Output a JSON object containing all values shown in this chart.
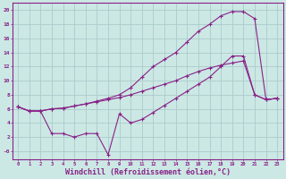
{
  "bg_color": "#cce8e4",
  "grid_color": "#aacccc",
  "line_color": "#882288",
  "xlabel": "Windchill (Refroidissement éolien,°C)",
  "xlabel_fontsize": 6.0,
  "xtick_labels": [
    "0",
    "1",
    "2",
    "3",
    "4",
    "5",
    "6",
    "7",
    "8",
    "9",
    "10",
    "11",
    "12",
    "13",
    "14",
    "15",
    "16",
    "17",
    "18",
    "19",
    "20",
    "21",
    "22",
    "23"
  ],
  "ytick_vals": [
    0,
    2,
    4,
    6,
    8,
    10,
    12,
    14,
    16,
    18,
    20
  ],
  "ytick_labels": [
    "-0",
    "2",
    "4",
    "6",
    "8",
    "10",
    "12",
    "14",
    "16",
    "18",
    "20"
  ],
  "ylim": [
    -1.2,
    21
  ],
  "xlim": [
    -0.5,
    23.5
  ],
  "series1_x": [
    0,
    1,
    2,
    3,
    4,
    5,
    6,
    7,
    8,
    9,
    10,
    11,
    12,
    13,
    14,
    15,
    16,
    17,
    18,
    19,
    20,
    21,
    22,
    23
  ],
  "series1_y": [
    6.3,
    5.7,
    5.7,
    6.0,
    6.1,
    6.4,
    6.7,
    7.1,
    7.5,
    8.0,
    9.0,
    10.5,
    12.0,
    13.0,
    14.0,
    15.5,
    17.0,
    18.0,
    19.2,
    19.8,
    19.8,
    18.8,
    7.3,
    7.5
  ],
  "series2_x": [
    0,
    1,
    2,
    3,
    4,
    5,
    6,
    7,
    8,
    9,
    10,
    11,
    12,
    13,
    14,
    15,
    16,
    17,
    18,
    19,
    20,
    21,
    22,
    23
  ],
  "series2_y": [
    6.3,
    5.7,
    5.7,
    2.5,
    2.5,
    2.0,
    2.5,
    2.5,
    -0.5,
    5.3,
    4.0,
    4.5,
    5.5,
    6.5,
    7.5,
    8.5,
    9.5,
    10.5,
    12.0,
    13.5,
    13.5,
    8.0,
    7.3,
    7.5
  ],
  "series3_x": [
    0,
    1,
    2,
    3,
    4,
    5,
    6,
    7,
    8,
    9,
    10,
    11,
    12,
    13,
    14,
    15,
    16,
    17,
    18,
    19,
    20,
    21,
    22,
    23
  ],
  "series3_y": [
    6.3,
    5.7,
    5.7,
    6.0,
    6.1,
    6.4,
    6.7,
    7.0,
    7.3,
    7.6,
    8.0,
    8.5,
    9.0,
    9.5,
    10.0,
    10.7,
    11.3,
    11.8,
    12.2,
    12.5,
    12.8,
    8.0,
    7.3,
    7.5
  ]
}
